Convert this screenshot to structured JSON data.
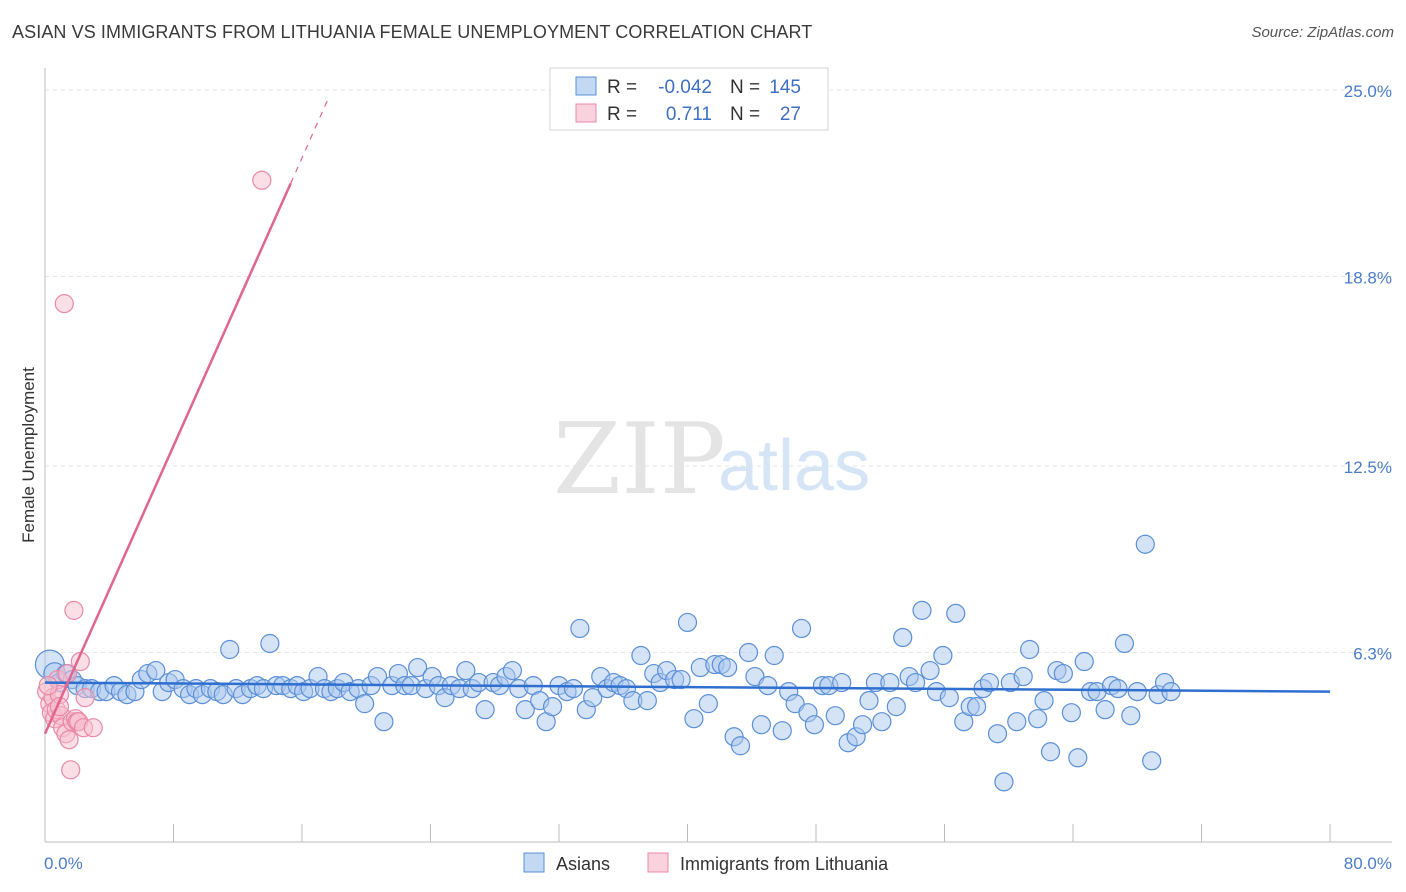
{
  "header": {
    "title": "ASIAN VS IMMIGRANTS FROM LITHUANIA FEMALE UNEMPLOYMENT CORRELATION CHART",
    "source": "Source: ZipAtlas.com"
  },
  "watermark": {
    "zip": "ZIP",
    "atlas": "atlas"
  },
  "colors": {
    "blue_fill": "#a9c8ee",
    "blue_stroke": "#5b8fd6",
    "blue_line": "#2f6fcf",
    "pink_fill": "#f7bfd0",
    "pink_stroke": "#e889a8",
    "pink_line": "#e0658f",
    "tick_color": "#4a7cc7",
    "grid": "#e6e6e6"
  },
  "legend": {
    "rows": [
      {
        "r_label": "R =",
        "r_value": "-0.042",
        "n_label": "N =",
        "n_value": "145",
        "series": "Asians"
      },
      {
        "r_label": "R =",
        "r_value": "0.711",
        "n_label": "N =",
        "n_value": "27",
        "series": "Immigrants from Lithuania"
      }
    ]
  },
  "chart_data": {
    "type": "scatter",
    "title": "ASIAN VS IMMIGRANTS FROM LITHUANIA FEMALE UNEMPLOYMENT CORRELATION CHART",
    "xlabel": "",
    "ylabel": "Female Unemployment",
    "xlim": [
      0,
      80
    ],
    "ylim": [
      0,
      25.6
    ],
    "x_tick_labels": [
      "0.0%",
      "80.0%"
    ],
    "y_ticks": [
      6.3,
      12.5,
      18.8,
      25.0
    ],
    "y_tick_labels": [
      "6.3%",
      "12.5%",
      "18.8%",
      "25.0%"
    ],
    "legend_position": "top-center",
    "series": [
      {
        "name": "Asians",
        "trend": {
          "x": [
            0,
            80
          ],
          "y": [
            5.3,
            5.0
          ]
        },
        "points": [
          [
            0.3,
            5.9,
            1.6
          ],
          [
            0.6,
            5.6,
            1.2
          ],
          [
            0.9,
            5.3,
            1.0
          ],
          [
            1.3,
            5.6,
            1.0
          ],
          [
            1.7,
            5.4,
            1.0
          ],
          [
            2.0,
            5.2,
            1.0
          ],
          [
            2.5,
            5.1,
            1.0
          ],
          [
            2.9,
            5.1,
            1.0
          ],
          [
            3.4,
            5.0,
            1.0
          ],
          [
            3.8,
            5.0,
            1.0
          ],
          [
            4.3,
            5.2,
            1.0
          ],
          [
            4.7,
            5.0,
            1.0
          ],
          [
            5.1,
            4.9,
            1.0
          ],
          [
            5.6,
            5.0,
            1.0
          ],
          [
            6.0,
            5.4,
            1.0
          ],
          [
            6.4,
            5.6,
            1.0
          ],
          [
            6.9,
            5.7,
            1.0
          ],
          [
            7.3,
            5.0,
            1.0
          ],
          [
            7.7,
            5.3,
            1.0
          ],
          [
            8.1,
            5.4,
            1.0
          ],
          [
            8.6,
            5.1,
            1.0
          ],
          [
            9.0,
            4.9,
            1.0
          ],
          [
            9.4,
            5.1,
            1.0
          ],
          [
            9.8,
            4.9,
            1.0
          ],
          [
            10.3,
            5.1,
            1.0
          ],
          [
            10.7,
            5.0,
            1.0
          ],
          [
            11.1,
            4.9,
            1.0
          ],
          [
            11.5,
            6.4,
            1.0
          ],
          [
            11.9,
            5.1,
            1.0
          ],
          [
            12.3,
            4.9,
            1.0
          ],
          [
            12.8,
            5.1,
            1.0
          ],
          [
            13.2,
            5.2,
            1.0
          ],
          [
            13.6,
            5.1,
            1.0
          ],
          [
            14.0,
            6.6,
            1.0
          ],
          [
            14.4,
            5.2,
            1.0
          ],
          [
            14.8,
            5.2,
            1.0
          ],
          [
            15.3,
            5.1,
            1.0
          ],
          [
            15.7,
            5.2,
            1.0
          ],
          [
            16.1,
            5.0,
            1.0
          ],
          [
            16.5,
            5.1,
            1.0
          ],
          [
            17.0,
            5.5,
            1.0
          ],
          [
            17.4,
            5.1,
            1.0
          ],
          [
            17.8,
            5.0,
            1.0
          ],
          [
            18.2,
            5.1,
            1.0
          ],
          [
            18.6,
            5.3,
            1.0
          ],
          [
            19.0,
            5.0,
            1.0
          ],
          [
            19.5,
            5.1,
            1.0
          ],
          [
            19.9,
            4.6,
            1.0
          ],
          [
            20.3,
            5.2,
            1.0
          ],
          [
            20.7,
            5.5,
            1.0
          ],
          [
            21.1,
            4.0,
            1.0
          ],
          [
            21.6,
            5.2,
            1.0
          ],
          [
            22.0,
            5.6,
            1.0
          ],
          [
            22.4,
            5.2,
            1.0
          ],
          [
            22.8,
            5.2,
            1.0
          ],
          [
            23.2,
            5.8,
            1.0
          ],
          [
            23.7,
            5.1,
            1.0
          ],
          [
            24.1,
            5.5,
            1.0
          ],
          [
            24.5,
            5.2,
            1.0
          ],
          [
            24.9,
            4.8,
            1.0
          ],
          [
            25.3,
            5.2,
            1.0
          ],
          [
            25.8,
            5.1,
            1.0
          ],
          [
            26.2,
            5.7,
            1.0
          ],
          [
            26.6,
            5.1,
            1.0
          ],
          [
            27.0,
            5.3,
            1.0
          ],
          [
            27.4,
            4.4,
            1.0
          ],
          [
            27.9,
            5.3,
            1.0
          ],
          [
            28.3,
            5.2,
            1.0
          ],
          [
            28.7,
            5.5,
            1.0
          ],
          [
            29.1,
            5.7,
            1.0
          ],
          [
            29.5,
            5.1,
            1.0
          ],
          [
            29.9,
            4.4,
            1.0
          ],
          [
            30.4,
            5.2,
            1.0
          ],
          [
            30.8,
            4.7,
            1.0
          ],
          [
            31.2,
            4.0,
            1.0
          ],
          [
            31.6,
            4.5,
            1.0
          ],
          [
            32.0,
            5.2,
            1.0
          ],
          [
            32.5,
            5.0,
            1.0
          ],
          [
            32.9,
            5.1,
            1.0
          ],
          [
            33.3,
            7.1,
            1.0
          ],
          [
            33.7,
            4.4,
            1.0
          ],
          [
            34.1,
            4.8,
            1.0
          ],
          [
            34.6,
            5.5,
            1.0
          ],
          [
            35.0,
            5.1,
            1.0
          ],
          [
            35.4,
            5.3,
            1.0
          ],
          [
            35.8,
            5.2,
            1.0
          ],
          [
            36.2,
            5.1,
            1.0
          ],
          [
            36.6,
            4.7,
            1.0
          ],
          [
            37.1,
            6.2,
            1.0
          ],
          [
            37.5,
            4.7,
            1.0
          ],
          [
            37.9,
            5.6,
            1.0
          ],
          [
            38.3,
            5.3,
            1.0
          ],
          [
            38.7,
            5.7,
            1.0
          ],
          [
            39.2,
            5.4,
            1.0
          ],
          [
            39.6,
            5.4,
            1.0
          ],
          [
            40.0,
            7.3,
            1.0
          ],
          [
            40.4,
            4.1,
            1.0
          ],
          [
            40.8,
            5.8,
            1.0
          ],
          [
            41.3,
            4.6,
            1.0
          ],
          [
            41.7,
            5.9,
            1.0
          ],
          [
            42.1,
            5.9,
            1.0
          ],
          [
            42.5,
            5.8,
            1.0
          ],
          [
            42.9,
            3.5,
            1.0
          ],
          [
            43.3,
            3.2,
            1.0
          ],
          [
            43.8,
            6.3,
            1.0
          ],
          [
            44.2,
            5.5,
            1.0
          ],
          [
            44.6,
            3.9,
            1.0
          ],
          [
            45.0,
            5.2,
            1.0
          ],
          [
            45.4,
            6.2,
            1.0
          ],
          [
            45.9,
            3.7,
            1.0
          ],
          [
            46.3,
            5.0,
            1.0
          ],
          [
            46.7,
            4.6,
            1.0
          ],
          [
            47.1,
            7.1,
            1.0
          ],
          [
            47.5,
            4.3,
            1.0
          ],
          [
            47.9,
            3.9,
            1.0
          ],
          [
            48.4,
            5.2,
            1.0
          ],
          [
            48.8,
            5.2,
            1.0
          ],
          [
            49.2,
            4.2,
            1.0
          ],
          [
            49.6,
            5.3,
            1.0
          ],
          [
            50.0,
            3.3,
            1.0
          ],
          [
            50.5,
            3.5,
            1.0
          ],
          [
            50.9,
            3.9,
            1.0
          ],
          [
            51.3,
            4.7,
            1.0
          ],
          [
            51.7,
            5.3,
            1.0
          ],
          [
            52.1,
            4.0,
            1.0
          ],
          [
            52.6,
            5.3,
            1.0
          ],
          [
            53.0,
            4.5,
            1.0
          ],
          [
            53.4,
            6.8,
            1.0
          ],
          [
            53.8,
            5.5,
            1.0
          ],
          [
            54.2,
            5.3,
            1.0
          ],
          [
            54.6,
            7.7,
            1.0
          ],
          [
            55.1,
            5.7,
            1.0
          ],
          [
            55.5,
            5.0,
            1.0
          ],
          [
            55.9,
            6.2,
            1.0
          ],
          [
            56.3,
            4.8,
            1.0
          ],
          [
            56.7,
            7.6,
            1.0
          ],
          [
            57.2,
            4.0,
            1.0
          ],
          [
            57.6,
            4.5,
            1.0
          ],
          [
            58.0,
            4.5,
            1.0
          ],
          [
            58.4,
            5.1,
            1.0
          ],
          [
            58.8,
            5.3,
            1.0
          ],
          [
            59.3,
            3.6,
            1.0
          ],
          [
            59.7,
            2.0,
            1.0
          ],
          [
            60.1,
            5.3,
            1.0
          ],
          [
            60.5,
            4.0,
            1.0
          ],
          [
            60.9,
            5.5,
            1.0
          ],
          [
            61.3,
            6.4,
            1.0
          ],
          [
            61.8,
            4.1,
            1.0
          ],
          [
            62.2,
            4.7,
            1.0
          ],
          [
            62.6,
            3.0,
            1.0
          ],
          [
            63.0,
            5.7,
            1.0
          ],
          [
            63.4,
            5.6,
            1.0
          ],
          [
            63.9,
            4.3,
            1.0
          ],
          [
            64.3,
            2.8,
            1.0
          ],
          [
            64.7,
            6.0,
            1.0
          ],
          [
            65.1,
            5.0,
            1.0
          ],
          [
            65.5,
            5.0,
            1.0
          ],
          [
            66.0,
            4.4,
            1.0
          ],
          [
            66.4,
            5.2,
            1.0
          ],
          [
            66.8,
            5.1,
            1.0
          ],
          [
            67.2,
            6.6,
            1.0
          ],
          [
            67.6,
            4.2,
            1.0
          ],
          [
            68.0,
            5.0,
            1.0
          ],
          [
            68.5,
            9.9,
            1.0
          ],
          [
            68.9,
            2.7,
            1.0
          ],
          [
            69.3,
            4.9,
            1.0
          ],
          [
            69.7,
            5.3,
            1.0
          ],
          [
            70.1,
            5.0,
            1.0
          ]
        ]
      },
      {
        "name": "Immigrants from Lithuania",
        "trend": {
          "x": [
            0,
            15.3
          ],
          "y": [
            3.6,
            21.9
          ]
        },
        "trend_extension": {
          "x": [
            15.3,
            17.7
          ],
          "y": [
            21.9,
            24.8
          ]
        },
        "points": [
          [
            0.1,
            5.0,
            1.0
          ],
          [
            0.3,
            4.6,
            1.0
          ],
          [
            0.4,
            4.3,
            1.0
          ],
          [
            0.5,
            4.8,
            1.0
          ],
          [
            0.6,
            4.1,
            1.0
          ],
          [
            0.7,
            4.4,
            1.0
          ],
          [
            0.8,
            5.4,
            1.0
          ],
          [
            0.9,
            4.9,
            1.0
          ],
          [
            1.0,
            4.2,
            1.0
          ],
          [
            1.1,
            3.8,
            1.0
          ],
          [
            1.2,
            17.9,
            1.0
          ],
          [
            1.3,
            3.6,
            1.0
          ],
          [
            1.4,
            5.6,
            1.0
          ],
          [
            1.5,
            3.4,
            1.0
          ],
          [
            1.6,
            2.4,
            1.0
          ],
          [
            1.7,
            4.0,
            1.0
          ],
          [
            1.8,
            7.7,
            1.0
          ],
          [
            1.9,
            4.1,
            1.0
          ],
          [
            2.0,
            4.0,
            1.0
          ],
          [
            2.1,
            4.0,
            1.0
          ],
          [
            2.2,
            6.0,
            1.0
          ],
          [
            2.4,
            3.8,
            1.0
          ],
          [
            2.5,
            4.8,
            1.0
          ],
          [
            3.0,
            3.8,
            1.0
          ],
          [
            13.5,
            22.0,
            1.0
          ],
          [
            0.2,
            5.2,
            1.0
          ],
          [
            0.9,
            4.5,
            1.0
          ]
        ]
      }
    ]
  },
  "bottom_legend": [
    {
      "label": "Asians"
    },
    {
      "label": "Immigrants from Lithuania"
    }
  ]
}
